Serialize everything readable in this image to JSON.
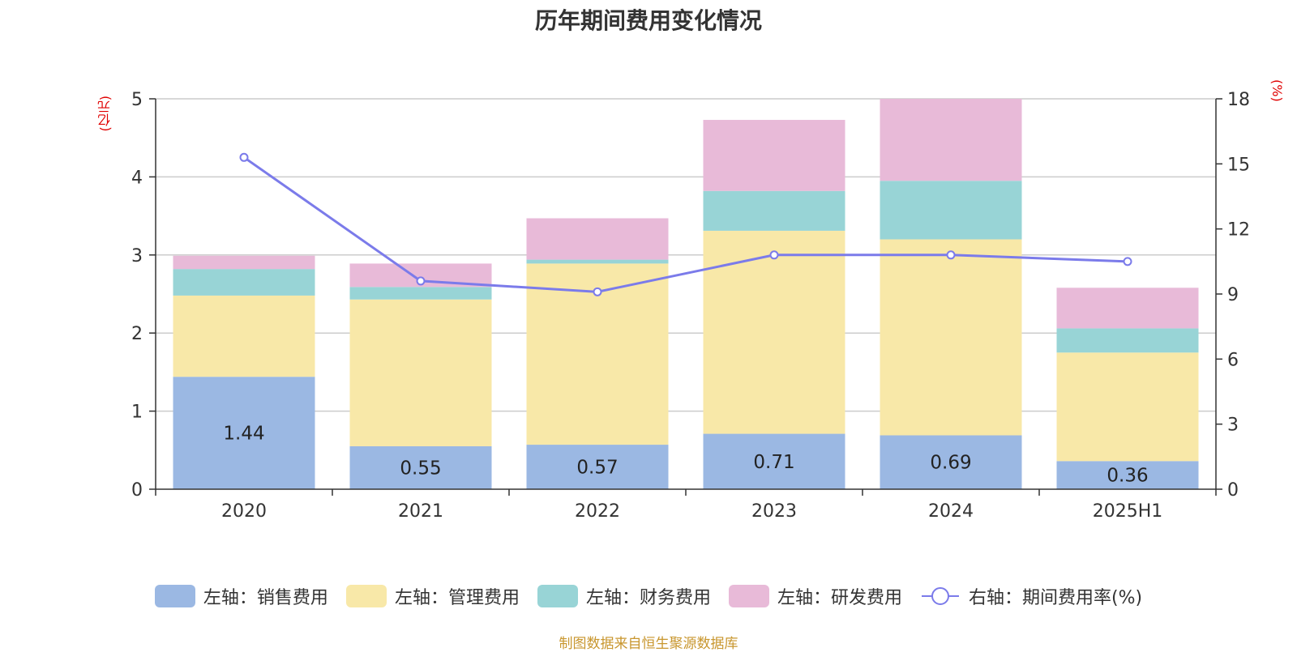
{
  "title": "历年期间费用变化情况",
  "source": "制图数据来自恒生聚源数据库",
  "chart_data": {
    "type": "bar",
    "stacked": true,
    "title": "历年期间费用变化情况",
    "left_axis_unit": "(亿元)",
    "right_axis_unit": "(%)",
    "categories": [
      "2020",
      "2021",
      "2022",
      "2023",
      "2024",
      "2025H1"
    ],
    "left_ylim": [
      0,
      5
    ],
    "left_ticks": [
      "0",
      "1",
      "2",
      "3",
      "4",
      "5"
    ],
    "right_ylim": [
      0,
      18
    ],
    "right_ticks": [
      "0",
      "3",
      "6",
      "9",
      "12",
      "15",
      "18"
    ],
    "grid": true,
    "legend_position": "bottom",
    "series": [
      {
        "name": "左轴：销售费用",
        "axis": "left",
        "color": "#9bb8e3",
        "values": [
          1.44,
          0.55,
          0.57,
          0.71,
          0.69,
          0.36
        ],
        "labels": [
          "1.44",
          "0.55",
          "0.57",
          "0.71",
          "0.69",
          "0.36"
        ]
      },
      {
        "name": "左轴：管理费用",
        "axis": "left",
        "color": "#f8e8a8",
        "values": [
          1.04,
          1.88,
          2.32,
          2.6,
          2.51,
          1.39
        ]
      },
      {
        "name": "左轴：财务费用",
        "axis": "left",
        "color": "#98d4d6",
        "values": [
          0.34,
          0.16,
          0.05,
          0.51,
          0.75,
          0.31
        ]
      },
      {
        "name": "左轴：研发费用",
        "axis": "left",
        "color": "#e8bad8",
        "values": [
          0.17,
          0.3,
          0.53,
          0.91,
          1.05,
          0.52
        ]
      }
    ],
    "line_series": {
      "name": "右轴：期间费用率(%)",
      "axis": "right",
      "color": "#7b7bea",
      "values": [
        15.3,
        9.6,
        9.1,
        10.8,
        10.8,
        10.5
      ]
    }
  }
}
